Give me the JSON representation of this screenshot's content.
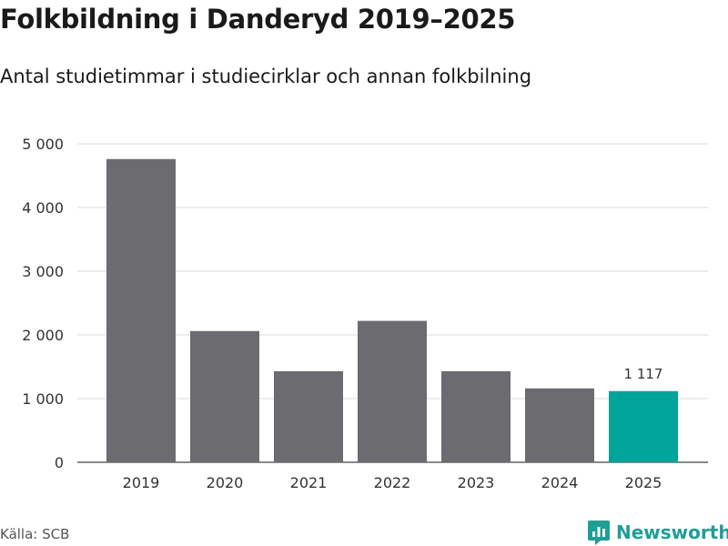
{
  "title": "Folkbildning i Danderyd 2019–2025",
  "subtitle": "Antal studietimmar i studiecirklar och annan folkbilning",
  "source": "Källa: SCB",
  "brand": "Newsworthy",
  "colors": {
    "bar": "#6c6b70",
    "highlight": "#00a49a",
    "grid": "#d9d9d9",
    "brand": "#1f9e96"
  },
  "chart_data": {
    "type": "bar",
    "categories": [
      "2019",
      "2020",
      "2021",
      "2022",
      "2023",
      "2024",
      "2025"
    ],
    "values": [
      4760,
      2060,
      1430,
      2220,
      1430,
      1160,
      1117
    ],
    "highlight_index": 6,
    "data_labels": {
      "6": "1 117"
    },
    "ylim": [
      0,
      5000
    ],
    "yticks": [
      0,
      1000,
      2000,
      3000,
      4000,
      5000
    ],
    "ytick_labels": [
      "0",
      "1 000",
      "2 000",
      "3 000",
      "4 000",
      "5 000"
    ],
    "xlabel": "",
    "ylabel": "",
    "grid": true
  }
}
